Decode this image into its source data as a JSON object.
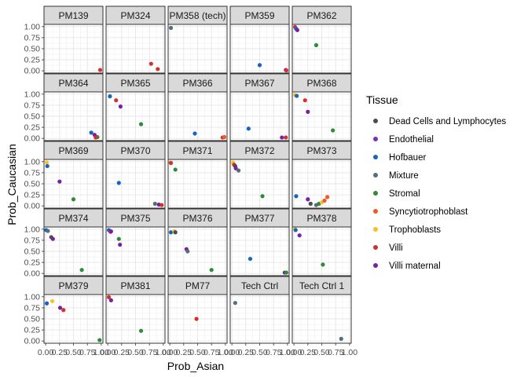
{
  "chart_data": {
    "type": "scatter",
    "layout": "facet_wrap",
    "facet_cols": 5,
    "xlabel": "Prob_Asian",
    "ylabel": "Prob_Caucasian",
    "xlim": [
      -0.03,
      1.03
    ],
    "ylim": [
      -0.05,
      1.05
    ],
    "x_ticks": [
      0.0,
      0.25,
      0.5,
      0.75,
      1.0
    ],
    "x_tick_labels": [
      "0.00",
      "0.25",
      "0.50",
      "0.75",
      "1.00"
    ],
    "y_ticks": [
      0.0,
      0.25,
      0.5,
      0.75,
      1.0
    ],
    "y_tick_labels": [
      "0.00",
      "0.25",
      "0.50",
      "0.75",
      "1.00"
    ],
    "grid": true,
    "legend": {
      "title": "Tissue",
      "placement": "right",
      "entries": [
        {
          "name": "Dead Cells and Lymphocytes",
          "color": "#4d4d4d"
        },
        {
          "name": "Endothelial",
          "color": "#7b2fbf"
        },
        {
          "name": "Hofbauer",
          "color": "#1565c0"
        },
        {
          "name": "Mixture",
          "color": "#546e7a"
        },
        {
          "name": "Stromal",
          "color": "#2e8b3a"
        },
        {
          "name": "Syncytiotrophoblast",
          "color": "#ef5a28"
        },
        {
          "name": "Trophoblasts",
          "color": "#fbbf24"
        },
        {
          "name": "Villi",
          "color": "#d32f2f"
        },
        {
          "name": "Villi maternal",
          "color": "#7b1fa2"
        }
      ]
    },
    "facets": [
      {
        "label": "PM139",
        "points": [
          {
            "x": 0.98,
            "y": 0.02,
            "tissue": "Villi"
          }
        ]
      },
      {
        "label": "PM324",
        "points": [
          {
            "x": 0.78,
            "y": 0.16,
            "tissue": "Villi"
          },
          {
            "x": 0.9,
            "y": 0.04,
            "tissue": "Villi"
          }
        ]
      },
      {
        "label": "PM358 (tech)",
        "points": [
          {
            "x": 0.02,
            "y": 0.97,
            "tissue": "Mixture"
          }
        ]
      },
      {
        "label": "PM359",
        "points": [
          {
            "x": 0.5,
            "y": 0.13,
            "tissue": "Hofbauer"
          },
          {
            "x": 0.97,
            "y": 0.02,
            "tissue": "Villi maternal"
          },
          {
            "x": 0.98,
            "y": 0.01,
            "tissue": "Villi"
          }
        ]
      },
      {
        "label": "PM362",
        "points": [
          {
            "x": 0.02,
            "y": 0.99,
            "tissue": "Villi"
          },
          {
            "x": 0.04,
            "y": 0.95,
            "tissue": "Hofbauer"
          },
          {
            "x": 0.06,
            "y": 0.92,
            "tissue": "Villi maternal"
          },
          {
            "x": 0.4,
            "y": 0.58,
            "tissue": "Stromal"
          }
        ]
      },
      {
        "label": "PM364",
        "points": [
          {
            "x": 0.82,
            "y": 0.13,
            "tissue": "Hofbauer"
          },
          {
            "x": 0.88,
            "y": 0.08,
            "tissue": "Villi maternal"
          },
          {
            "x": 0.93,
            "y": 0.03,
            "tissue": "Stromal"
          },
          {
            "x": 0.9,
            "y": 0.02,
            "tissue": "Villi"
          }
        ]
      },
      {
        "label": "PM365",
        "points": [
          {
            "x": 0.04,
            "y": 0.95,
            "tissue": "Hofbauer"
          },
          {
            "x": 0.15,
            "y": 0.86,
            "tissue": "Villi"
          },
          {
            "x": 0.23,
            "y": 0.72,
            "tissue": "Villi maternal"
          },
          {
            "x": 0.6,
            "y": 0.32,
            "tissue": "Stromal"
          }
        ]
      },
      {
        "label": "PM366",
        "points": [
          {
            "x": 0.45,
            "y": 0.11,
            "tissue": "Hofbauer"
          },
          {
            "x": 0.95,
            "y": 0.02,
            "tissue": "Villi"
          },
          {
            "x": 0.98,
            "y": 0.03,
            "tissue": "Syncytiotrophoblast"
          }
        ]
      },
      {
        "label": "PM367",
        "points": [
          {
            "x": 0.3,
            "y": 0.22,
            "tissue": "Hofbauer"
          },
          {
            "x": 0.9,
            "y": 0.02,
            "tissue": "Villi maternal"
          },
          {
            "x": 0.97,
            "y": 0.02,
            "tissue": "Villi"
          }
        ]
      },
      {
        "label": "PM368",
        "points": [
          {
            "x": 0.02,
            "y": 0.98,
            "tissue": "Trophoblasts"
          },
          {
            "x": 0.05,
            "y": 0.96,
            "tissue": "Hofbauer"
          },
          {
            "x": 0.2,
            "y": 0.86,
            "tissue": "Villi"
          },
          {
            "x": 0.25,
            "y": 0.6,
            "tissue": "Villi maternal"
          },
          {
            "x": 0.7,
            "y": 0.18,
            "tissue": "Stromal"
          }
        ]
      },
      {
        "label": "PM369",
        "points": [
          {
            "x": 0.02,
            "y": 0.98,
            "tissue": "Trophoblasts"
          },
          {
            "x": 0.03,
            "y": 0.9,
            "tissue": "Hofbauer"
          },
          {
            "x": 0.25,
            "y": 0.55,
            "tissue": "Villi maternal"
          },
          {
            "x": 0.5,
            "y": 0.15,
            "tissue": "Stromal"
          }
        ]
      },
      {
        "label": "PM370",
        "points": [
          {
            "x": 0.2,
            "y": 0.52,
            "tissue": "Hofbauer"
          },
          {
            "x": 0.85,
            "y": 0.05,
            "tissue": "Mixture"
          },
          {
            "x": 0.92,
            "y": 0.03,
            "tissue": "Villi maternal"
          },
          {
            "x": 0.97,
            "y": 0.02,
            "tissue": "Villi"
          }
        ]
      },
      {
        "label": "PM371",
        "points": [
          {
            "x": 0.01,
            "y": 0.98,
            "tissue": "Trophoblasts"
          },
          {
            "x": 0.02,
            "y": 0.97,
            "tissue": "Villi"
          },
          {
            "x": 0.1,
            "y": 0.82,
            "tissue": "Stromal"
          }
        ]
      },
      {
        "label": "PM372",
        "points": [
          {
            "x": 0.02,
            "y": 0.98,
            "tissue": "Trophoblasts"
          },
          {
            "x": 0.04,
            "y": 0.93,
            "tissue": "Villi"
          },
          {
            "x": 0.06,
            "y": 0.9,
            "tissue": "Dead Cells and Lymphocytes"
          },
          {
            "x": 0.07,
            "y": 0.85,
            "tissue": "Villi maternal"
          },
          {
            "x": 0.12,
            "y": 0.8,
            "tissue": "Mixture"
          },
          {
            "x": 0.55,
            "y": 0.22,
            "tissue": "Stromal"
          }
        ]
      },
      {
        "label": "PM373",
        "points": [
          {
            "x": 0.04,
            "y": 0.22,
            "tissue": "Hofbauer"
          },
          {
            "x": 0.25,
            "y": 0.15,
            "tissue": "Villi maternal"
          },
          {
            "x": 0.3,
            "y": 0.05,
            "tissue": "Dead Cells and Lymphocytes"
          },
          {
            "x": 0.4,
            "y": 0.02,
            "tissue": "Mixture"
          },
          {
            "x": 0.45,
            "y": 0.05,
            "tissue": "Stromal"
          },
          {
            "x": 0.5,
            "y": 0.08,
            "tissue": "Trophoblasts"
          },
          {
            "x": 0.55,
            "y": 0.12,
            "tissue": "Syncytiotrophoblast"
          },
          {
            "x": 0.6,
            "y": 0.2,
            "tissue": "Syncytiotrophoblast"
          }
        ]
      },
      {
        "label": "PM374",
        "points": [
          {
            "x": 0.01,
            "y": 0.98,
            "tissue": "Hofbauer"
          },
          {
            "x": 0.04,
            "y": 0.96,
            "tissue": "Mixture"
          },
          {
            "x": 0.1,
            "y": 0.82,
            "tissue": "Dead Cells and Lymphocytes"
          },
          {
            "x": 0.13,
            "y": 0.78,
            "tissue": "Villi maternal"
          },
          {
            "x": 0.65,
            "y": 0.08,
            "tissue": "Stromal"
          }
        ]
      },
      {
        "label": "PM375",
        "points": [
          {
            "x": 0.02,
            "y": 0.98,
            "tissue": "Hofbauer"
          },
          {
            "x": 0.05,
            "y": 0.94,
            "tissue": "Villi"
          },
          {
            "x": 0.06,
            "y": 0.95,
            "tissue": "Villi maternal"
          },
          {
            "x": 0.2,
            "y": 0.78,
            "tissue": "Stromal"
          },
          {
            "x": 0.22,
            "y": 0.65,
            "tissue": "Villi maternal"
          }
        ]
      },
      {
        "label": "PM376",
        "points": [
          {
            "x": 0.02,
            "y": 0.93,
            "tissue": "Hofbauer"
          },
          {
            "x": 0.08,
            "y": 0.95,
            "tissue": "Trophoblasts"
          },
          {
            "x": 0.1,
            "y": 0.93,
            "tissue": "Dead Cells and Lymphocytes"
          },
          {
            "x": 0.3,
            "y": 0.55,
            "tissue": "Villi maternal"
          },
          {
            "x": 0.32,
            "y": 0.5,
            "tissue": "Mixture"
          },
          {
            "x": 0.75,
            "y": 0.08,
            "tissue": "Stromal"
          }
        ]
      },
      {
        "label": "PM377",
        "points": [
          {
            "x": 0.33,
            "y": 0.33,
            "tissue": "Hofbauer"
          },
          {
            "x": 0.95,
            "y": 0.02,
            "tissue": "Villi maternal"
          },
          {
            "x": 0.98,
            "y": 0.02,
            "tissue": "Stromal"
          }
        ]
      },
      {
        "label": "PM378",
        "points": [
          {
            "x": 0.02,
            "y": 1.0,
            "tissue": "Trophoblasts"
          },
          {
            "x": 0.03,
            "y": 0.98,
            "tissue": "Hofbauer"
          },
          {
            "x": 0.1,
            "y": 0.86,
            "tissue": "Villi maternal"
          },
          {
            "x": 0.52,
            "y": 0.2,
            "tissue": "Stromal"
          }
        ]
      },
      {
        "label": "PM379",
        "points": [
          {
            "x": 0.02,
            "y": 0.85,
            "tissue": "Hofbauer"
          },
          {
            "x": 0.12,
            "y": 0.9,
            "tissue": "Trophoblasts"
          },
          {
            "x": 0.26,
            "y": 0.75,
            "tissue": "Villi maternal"
          },
          {
            "x": 0.32,
            "y": 0.7,
            "tissue": "Villi"
          },
          {
            "x": 0.97,
            "y": 0.02,
            "tissue": "Stromal"
          }
        ]
      },
      {
        "label": "PM381",
        "points": [
          {
            "x": 0.02,
            "y": 0.99,
            "tissue": "Villi"
          },
          {
            "x": 0.06,
            "y": 0.92,
            "tissue": "Villi maternal"
          },
          {
            "x": 0.6,
            "y": 0.23,
            "tissue": "Stromal"
          }
        ]
      },
      {
        "label": "PM77",
        "points": [
          {
            "x": 0.48,
            "y": 0.5,
            "tissue": "Villi"
          }
        ]
      },
      {
        "label": "Tech Ctrl",
        "points": [
          {
            "x": 0.06,
            "y": 0.86,
            "tissue": "Mixture"
          }
        ]
      },
      {
        "label": "Tech Ctrl 1",
        "points": [
          {
            "x": 0.85,
            "y": 0.05,
            "tissue": "Mixture"
          }
        ]
      }
    ]
  }
}
